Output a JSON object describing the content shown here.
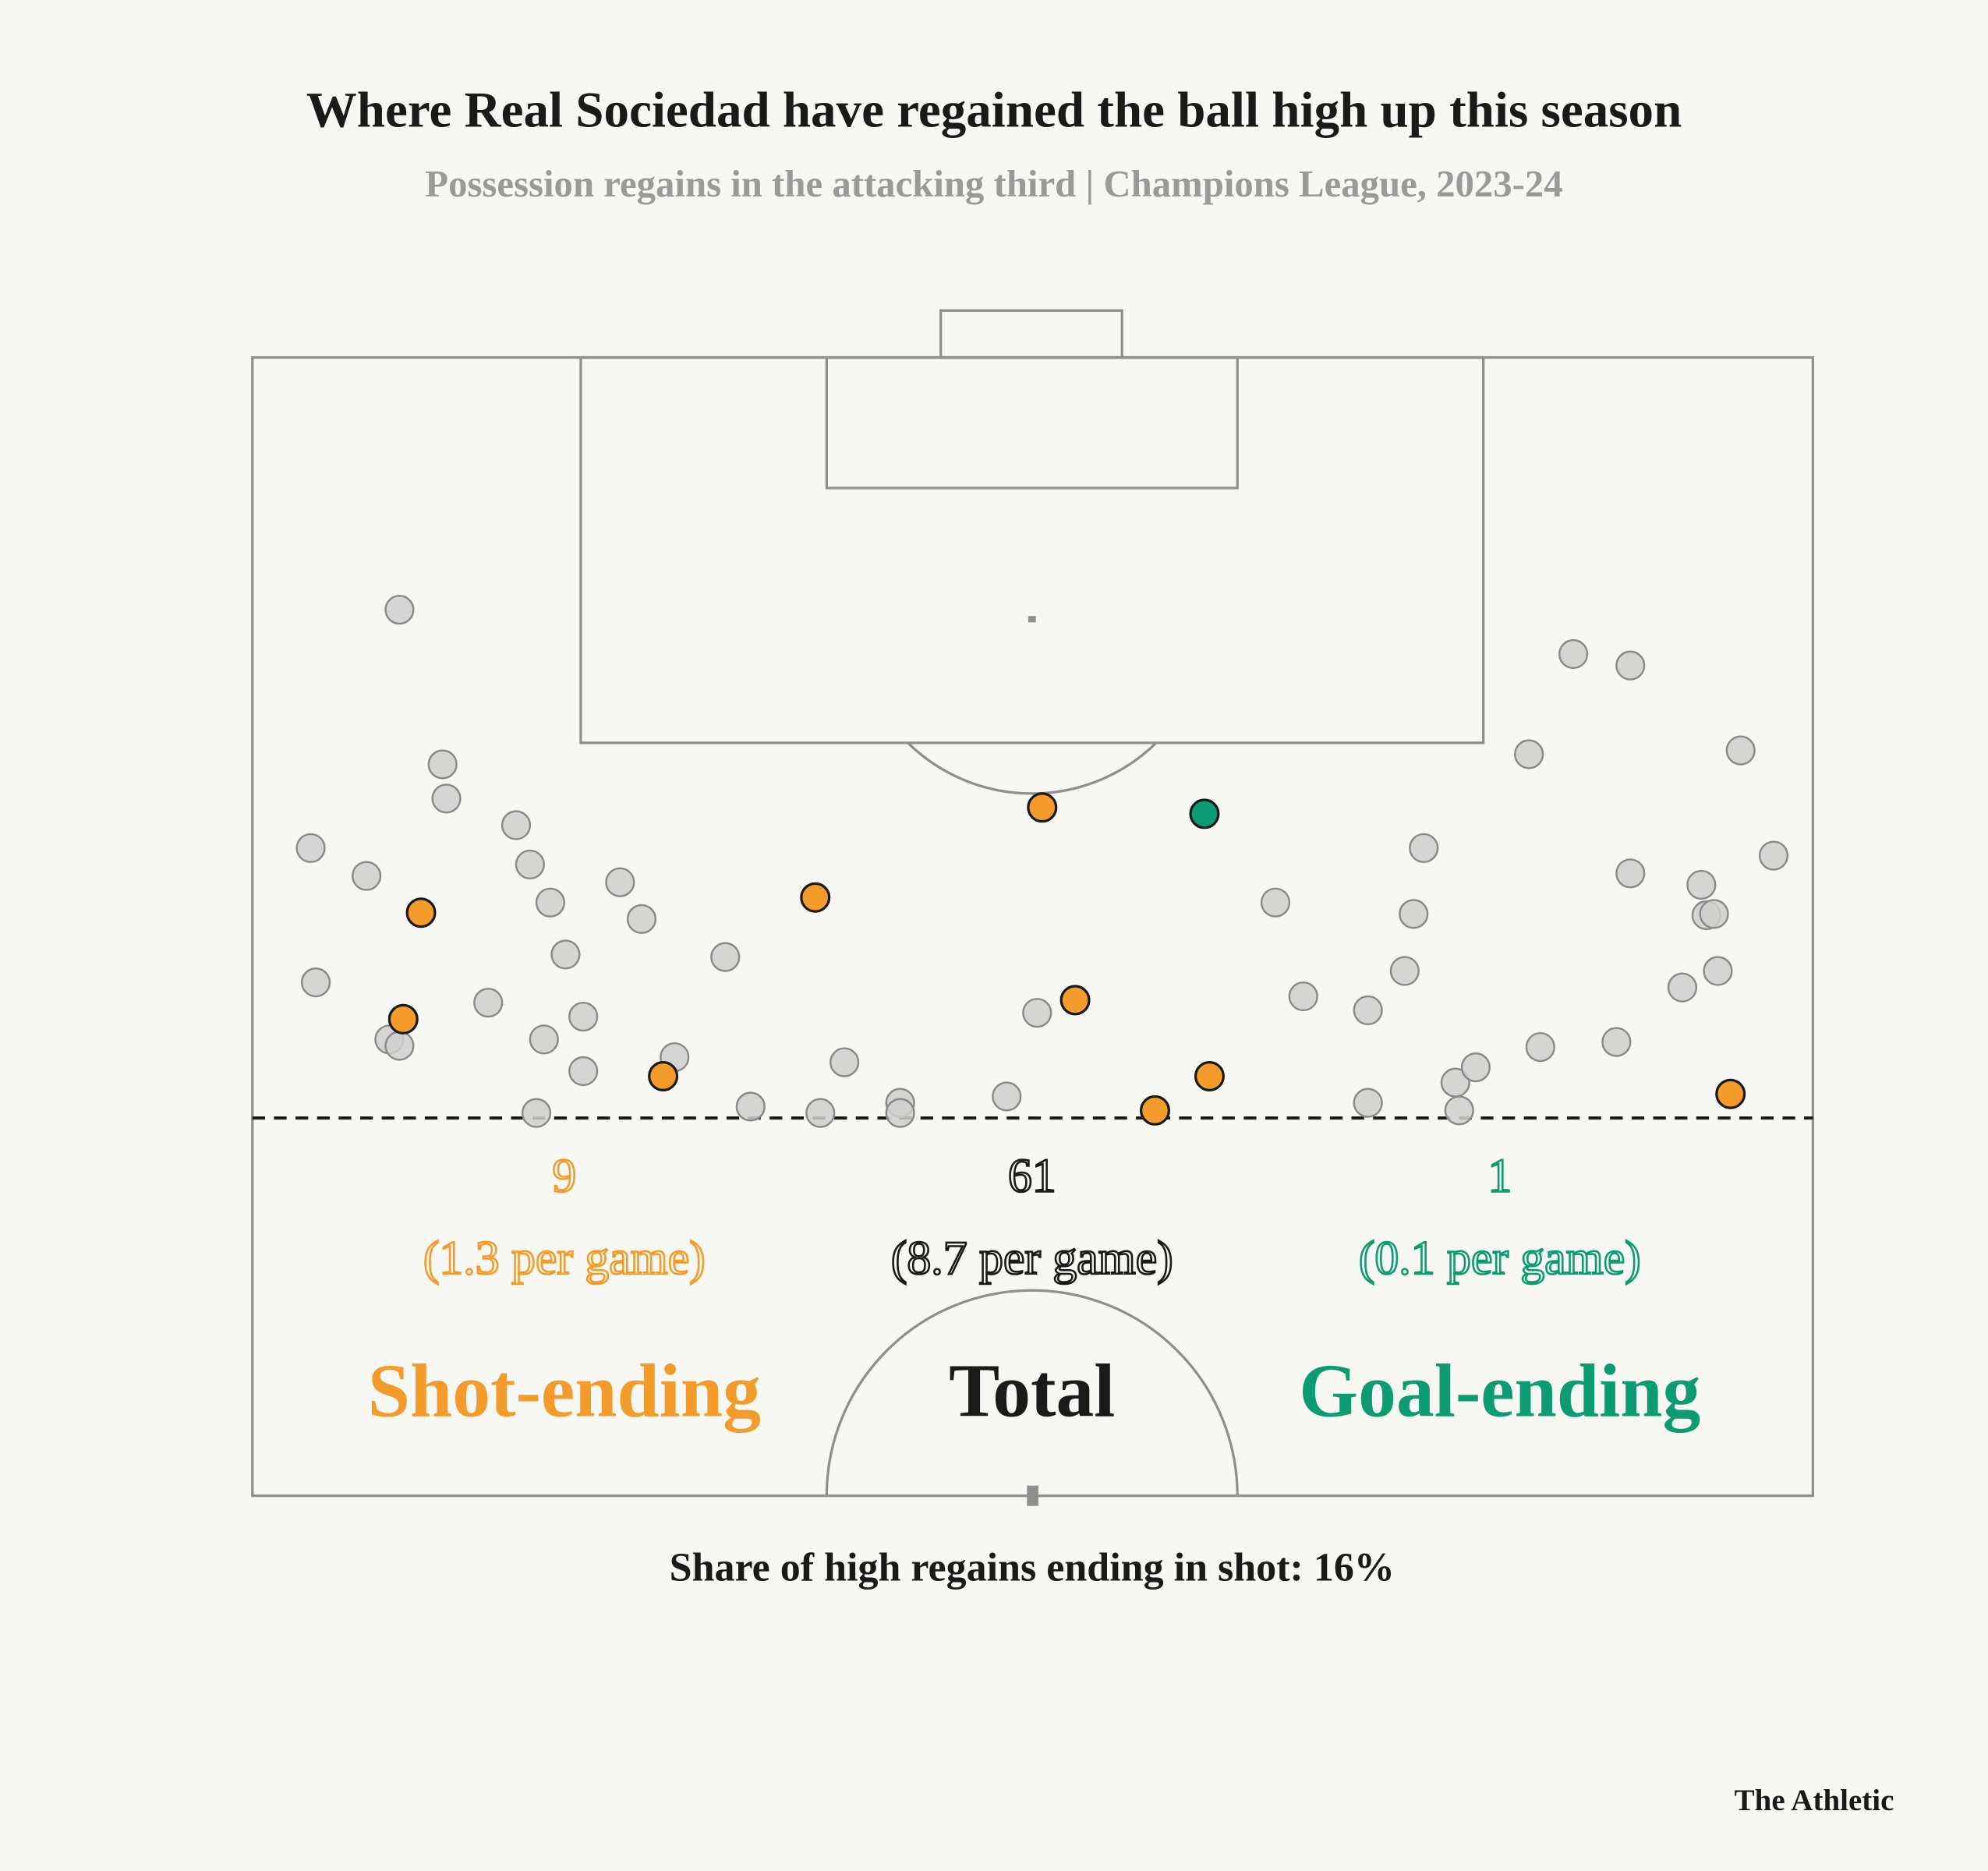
{
  "chart_data": {
    "type": "scatter",
    "title": "Where Real Sociedad have regained the ball high up this season",
    "subtitle": "Possession regains in the attacking third | Champions League, 2023-24",
    "xlim": [
      0,
      1231
    ],
    "ylim": [
      0,
      898
    ],
    "series": [
      {
        "color": "#cfcfcc",
        "x": [
          116,
          150,
          153,
          46,
          90,
          208,
          219,
          235,
          290,
          307,
          247,
          373,
          50,
          186,
          261,
          230,
          108,
          116,
          261,
          333,
          224,
          393,
          448,
          467,
          511,
          511,
          595,
          619,
          807,
          829,
          880,
          909,
          916,
          924,
          880,
          949,
          952,
          965,
          1007,
          1042,
          1087,
          1016,
          1076,
          1087,
          1143,
          1147,
          1153,
          1128,
          1156,
          1174,
          1200
        ],
        "y": [
          199,
          321,
          348,
          387,
          409,
          369,
          400,
          430,
          414,
          443,
          471,
          473,
          493,
          509,
          520,
          538,
          538,
          543,
          563,
          552,
          596,
          591,
          596,
          556,
          588,
          596,
          583,
          517,
          430,
          504,
          515,
          484,
          439,
          387,
          588,
          572,
          594,
          560,
          313,
          234,
          243,
          544,
          540,
          407,
          416,
          440,
          439,
          497,
          484,
          310,
          393
        ]
      },
      {
        "color": "#f39c2b",
        "x": [
          133,
          119,
          324,
          444,
          623,
          649,
          712,
          755,
          1166
        ],
        "y": [
          438,
          522,
          567,
          426,
          355,
          507,
          594,
          567,
          581
        ]
      },
      {
        "color": "#0d9b72",
        "x": [
          751
        ],
        "y": [
          360
        ]
      }
    ],
    "stats": [
      {
        "count": "9",
        "per_game": "(1.3 per game)",
        "label": "Shot-ending",
        "color": "#f39c2b"
      },
      {
        "count": "61",
        "per_game": "(8.7 per game)",
        "label": "Total",
        "color": "#1a1a1a"
      },
      {
        "count": "1",
        "per_game": "(0.1 per game)",
        "label": "Goal-ending",
        "color": "#0d9b72"
      }
    ],
    "footnote": "Share of high regains ending in shot: 16%",
    "source": "The Athletic"
  }
}
